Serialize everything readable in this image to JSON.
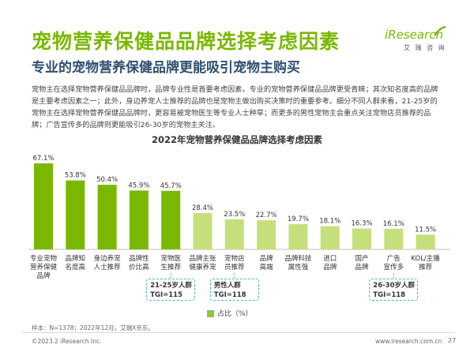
{
  "header": {
    "title": "宠物营养保健品品牌选择考虑因素",
    "subtitle": "专业的宠物营养保健品牌更能吸引宠物主购买"
  },
  "logo": {
    "brand": "iResearch",
    "cn": "艾 瑞 咨 询"
  },
  "description": "宠物主在选择宠物营养保健品品牌时，品牌专业性是首要考虑因素，专业的宠物营养保健品品牌更受青睐；其次知名度高的品牌是主要考虑因素之一；此外，身边养宠人士推荐的品牌也是宠物主做出购买决策时的重要参考。细分不同人群来看，21-25岁的宠物主在选择宠物营养保健品品牌时，更容易被宠物医生等专业人士种草；而更多的男性宠物主会重点关注宠物店员推荐的品牌；广告宣传多的品牌则更能吸引26-30岁的宠物主关注。",
  "chart_data": {
    "type": "bar",
    "title": "2022年宠物营养保健品品牌选择考虑因素",
    "categories": [
      [
        "专业宠物",
        "营养保健",
        "品牌"
      ],
      [
        "品牌知",
        "名度高"
      ],
      [
        "身边养宠",
        "人士推荐"
      ],
      [
        "品牌性",
        "价比高"
      ],
      [
        "宠物医",
        "生推荐"
      ],
      [
        "品牌主张",
        "健康养宠"
      ],
      [
        "宠物店",
        "员推荐"
      ],
      [
        "品牌",
        "高端"
      ],
      [
        "品牌科技",
        "属性强"
      ],
      [
        "进口",
        "品牌"
      ],
      [
        "国产",
        "品牌"
      ],
      [
        "广告",
        "宣传多"
      ],
      [
        "KOL/主播",
        "推荐"
      ]
    ],
    "values": [
      67.1,
      53.8,
      50.4,
      45.9,
      45.7,
      28.4,
      23.5,
      22.7,
      19.7,
      18.1,
      16.3,
      16.1,
      11.5
    ],
    "value_labels": [
      "67.1%",
      "53.8%",
      "50.4%",
      "45.9%",
      "45.7%",
      "28.4%",
      "23.5%",
      "22.7%",
      "19.7%",
      "18.1%",
      "16.3%",
      "16.1%",
      "11.5%"
    ],
    "bar_colors": {
      "dark": "#7ab800",
      "light": "#c5e07a",
      "dark_count": 5
    },
    "legend": {
      "label": "占比（%）",
      "color": "#8cc63f",
      "position": "bottom"
    },
    "ylim": [
      0,
      80
    ],
    "grid": false
  },
  "callouts": [
    {
      "bar_index": 4,
      "line1": "21-25岁人群",
      "line2": "TGI=115"
    },
    {
      "bar_index": 6,
      "line1": "男性人群",
      "line2": "TGI=118"
    },
    {
      "bar_index": 11,
      "line1": "26-30岁人群",
      "line2": "TGI=118"
    }
  ],
  "note": "样本：N=1378；2022年12月，艾瑞X京东。",
  "footer": {
    "copyright": "©2023.2 iResearch Inc.",
    "website": "www.iresearch.com.cn",
    "page": "27"
  }
}
